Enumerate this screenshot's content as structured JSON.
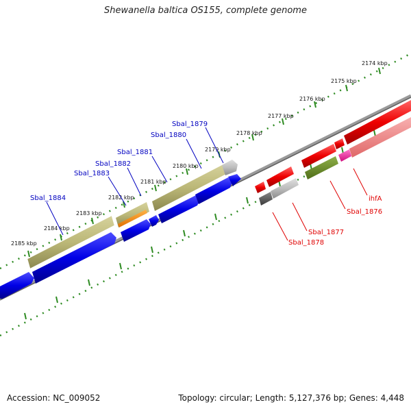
{
  "title": "Shewanella baltica OS155, complete genome",
  "footer": {
    "accession": "Accession: NC_009052",
    "summary": "Topology: circular; Length: 5,127,376 bp; Genes: 4,448"
  },
  "colors": {
    "backbone": "#808080",
    "ticks": "#2e8b22",
    "forward_cds": "#0000e6",
    "reverse_cds": "#e60000",
    "rna_olive": "#bcb878",
    "grey_gene": "#b9b9b9",
    "dark_grey_gene": "#5a5a5a",
    "orange_gene": "#ff8c00",
    "olive_green_gene": "#6b8e23",
    "pink_gene": "#ff33aa",
    "light_red_gene": "#f08080",
    "label_blue": "#0000c0",
    "label_red": "#e00000"
  },
  "scale_labels": [
    "2174 kbp",
    "2175 kbp",
    "2176 kbp",
    "2177 kbp",
    "2178 kbp",
    "2179 kbp",
    "2180 kbp",
    "2181 kbp",
    "2182 kbp",
    "2183 kbp",
    "2184 kbp",
    "2185 kbp"
  ],
  "forward_gene_labels": [
    "Sbal_1879",
    "Sbal_1880",
    "Sbal_1881",
    "Sbal_1882",
    "Sbal_1883",
    "Sbal_1884"
  ],
  "reverse_gene_labels": [
    "ihfA",
    "Sbal_1876",
    "Sbal_1877",
    "Sbal_1878"
  ]
}
